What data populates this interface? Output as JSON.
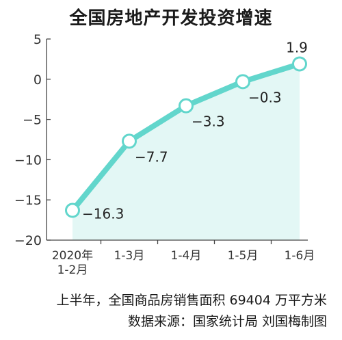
{
  "title": "全国房地产开发投资增速",
  "chart_data": {
    "type": "line",
    "title": "全国房地产开发投资增速",
    "categories": [
      "2020年\n1-2月",
      "1-3月",
      "1-4月",
      "1-5月",
      "1-6月"
    ],
    "values": [
      -16.3,
      -7.7,
      -3.3,
      -0.3,
      1.9
    ],
    "value_labels": [
      "−16.3",
      "−7.7",
      "−3.3",
      "−0.3",
      "1.9"
    ],
    "ylim": [
      -20,
      5
    ],
    "yticks": [
      5,
      0,
      -5,
      -10,
      -15,
      -20
    ],
    "ytick_labels": [
      "5",
      "0",
      "−5",
      "−10",
      "−15",
      "−20"
    ],
    "grid": false,
    "fill_area": true,
    "line_color": "#62d6cc",
    "fill_color": "#e3f7f5"
  },
  "footer": {
    "line1": "上半年，全国商品房销售面积 69404 万平方米",
    "line2": "数据来源：国家统计局  刘国梅制图"
  }
}
